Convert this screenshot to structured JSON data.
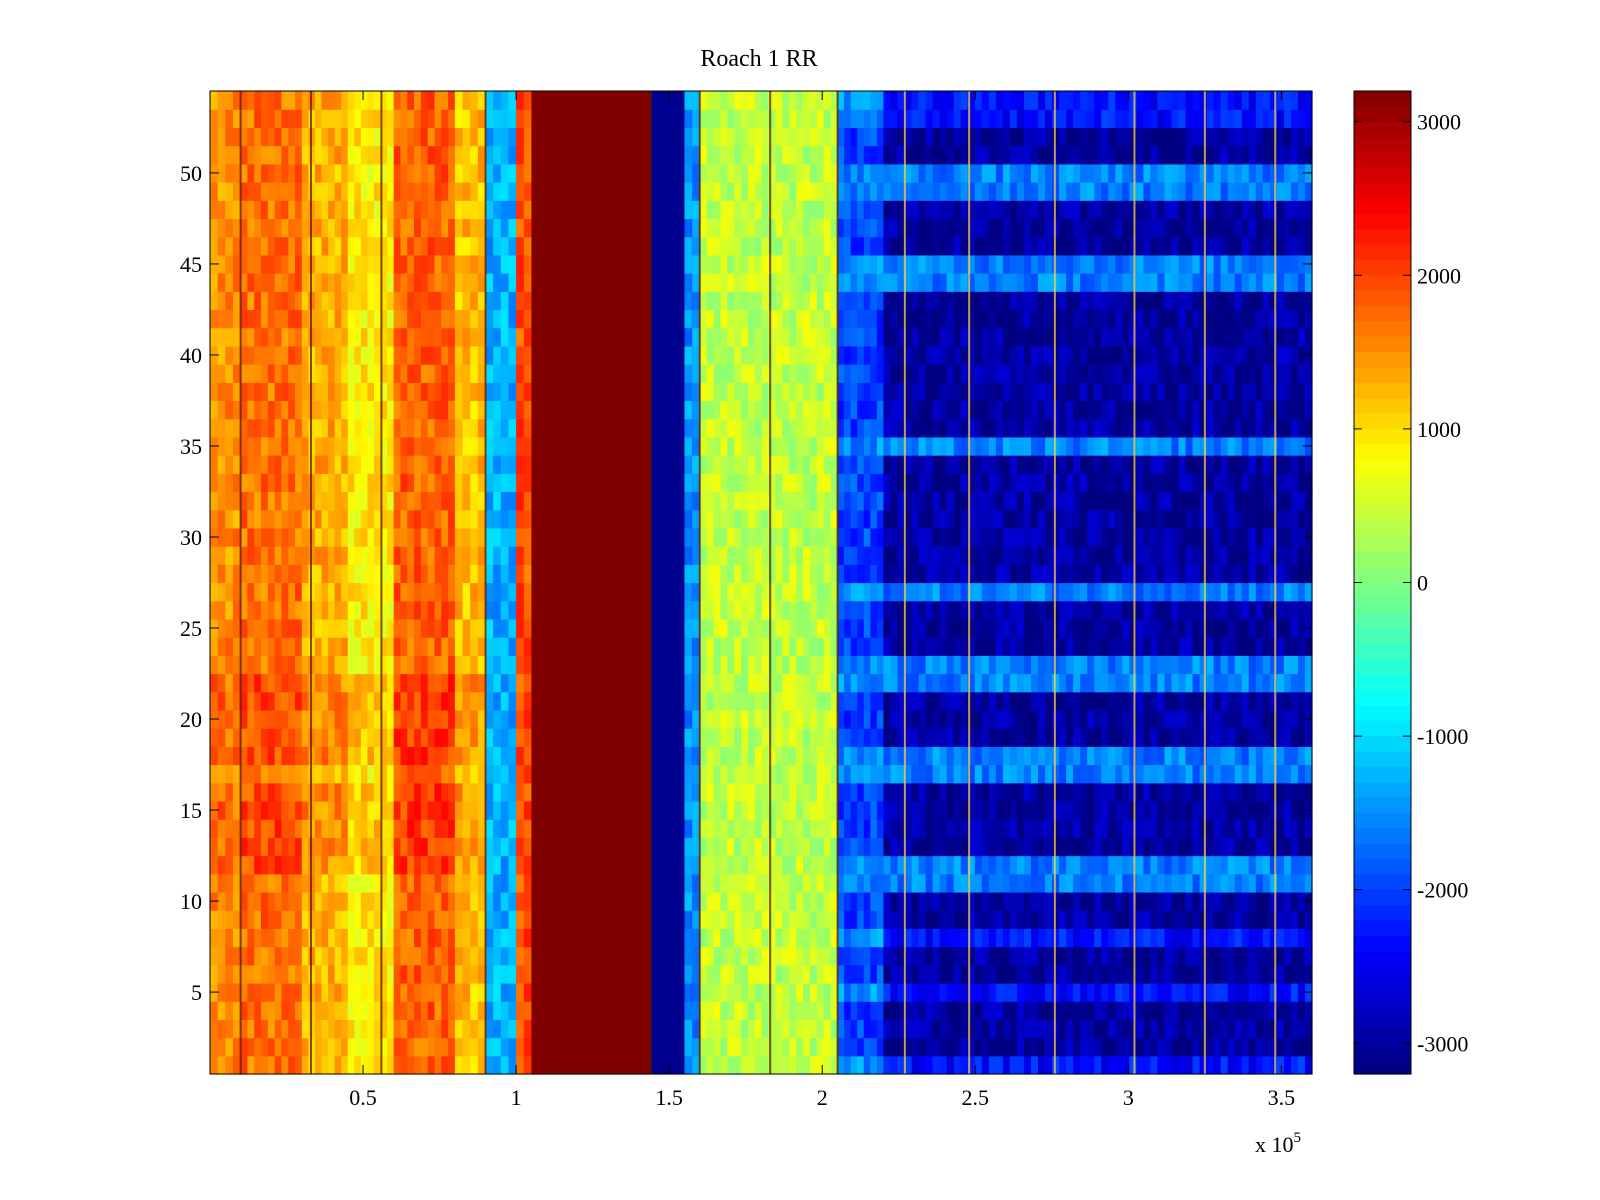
{
  "chart_data": {
    "type": "heatmap",
    "title": "Roach 1 RR",
    "xlabel": "",
    "ylabel": "",
    "x_multiplier_label": "x 10",
    "x_multiplier_exp": "5",
    "xlim": [
      0,
      3.6
    ],
    "ylim": [
      0.5,
      54.5
    ],
    "x_ticks": [
      0.5,
      1,
      1.5,
      2,
      2.5,
      3,
      3.5
    ],
    "x_tick_labels": [
      "0.5",
      "1",
      "1.5",
      "2",
      "2.5",
      "3",
      "3.5"
    ],
    "y_ticks": [
      5,
      10,
      15,
      20,
      25,
      30,
      35,
      40,
      45,
      50
    ],
    "y_tick_labels": [
      "5",
      "10",
      "15",
      "20",
      "25",
      "30",
      "35",
      "40",
      "45",
      "50"
    ],
    "colormap": "jet",
    "clim": [
      -3200,
      3200
    ],
    "colorbar_ticks": [
      3000,
      2000,
      1000,
      0,
      -1000,
      -2000,
      -3000
    ],
    "colorbar_tick_labels": [
      "3000",
      "2000",
      "1000",
      "0",
      "-1000",
      "-2000",
      "-3000"
    ],
    "rows": 54,
    "column_profile": [
      {
        "x_start": 0.0,
        "x_end": 0.1,
        "value": 1500
      },
      {
        "x_start": 0.1,
        "x_end": 0.3,
        "value": 1700
      },
      {
        "x_start": 0.3,
        "x_end": 0.45,
        "value": 1300
      },
      {
        "x_start": 0.45,
        "x_end": 0.6,
        "value": 900
      },
      {
        "x_start": 0.6,
        "x_end": 0.8,
        "value": 1800
      },
      {
        "x_start": 0.8,
        "x_end": 0.9,
        "value": 1200
      },
      {
        "x_start": 0.9,
        "x_end": 1.0,
        "value": -1300
      },
      {
        "x_start": 1.0,
        "x_end": 1.05,
        "value": 1900
      },
      {
        "x_start": 1.05,
        "x_end": 1.44,
        "value": 3200
      },
      {
        "x_start": 1.44,
        "x_end": 1.55,
        "value": -3100
      },
      {
        "x_start": 1.55,
        "x_end": 1.6,
        "value": -1500
      },
      {
        "x_start": 1.6,
        "x_end": 2.05,
        "value": 400
      },
      {
        "x_start": 2.05,
        "x_end": 2.2,
        "value": -1500
      },
      {
        "x_start": 2.2,
        "x_end": 3.6,
        "value": -2500
      }
    ],
    "vertical_lines_x": [
      0.1,
      0.33,
      0.56,
      0.9,
      1.44,
      1.6,
      1.83,
      2.05,
      2.27,
      2.48,
      2.76,
      3.02,
      3.25,
      3.48
    ],
    "dark_rows_right_region": [
      2,
      3,
      4,
      6,
      7,
      9,
      10,
      13,
      14,
      15,
      16,
      19,
      20,
      21,
      24,
      25,
      26,
      28,
      29,
      30,
      31,
      32,
      33,
      34,
      36,
      37,
      38,
      39,
      40,
      41,
      42,
      43,
      46,
      47,
      48,
      51,
      52
    ],
    "light_rows_right_region": [
      11,
      12,
      17,
      18,
      22,
      23,
      27,
      35,
      44,
      45,
      49,
      50
    ]
  }
}
